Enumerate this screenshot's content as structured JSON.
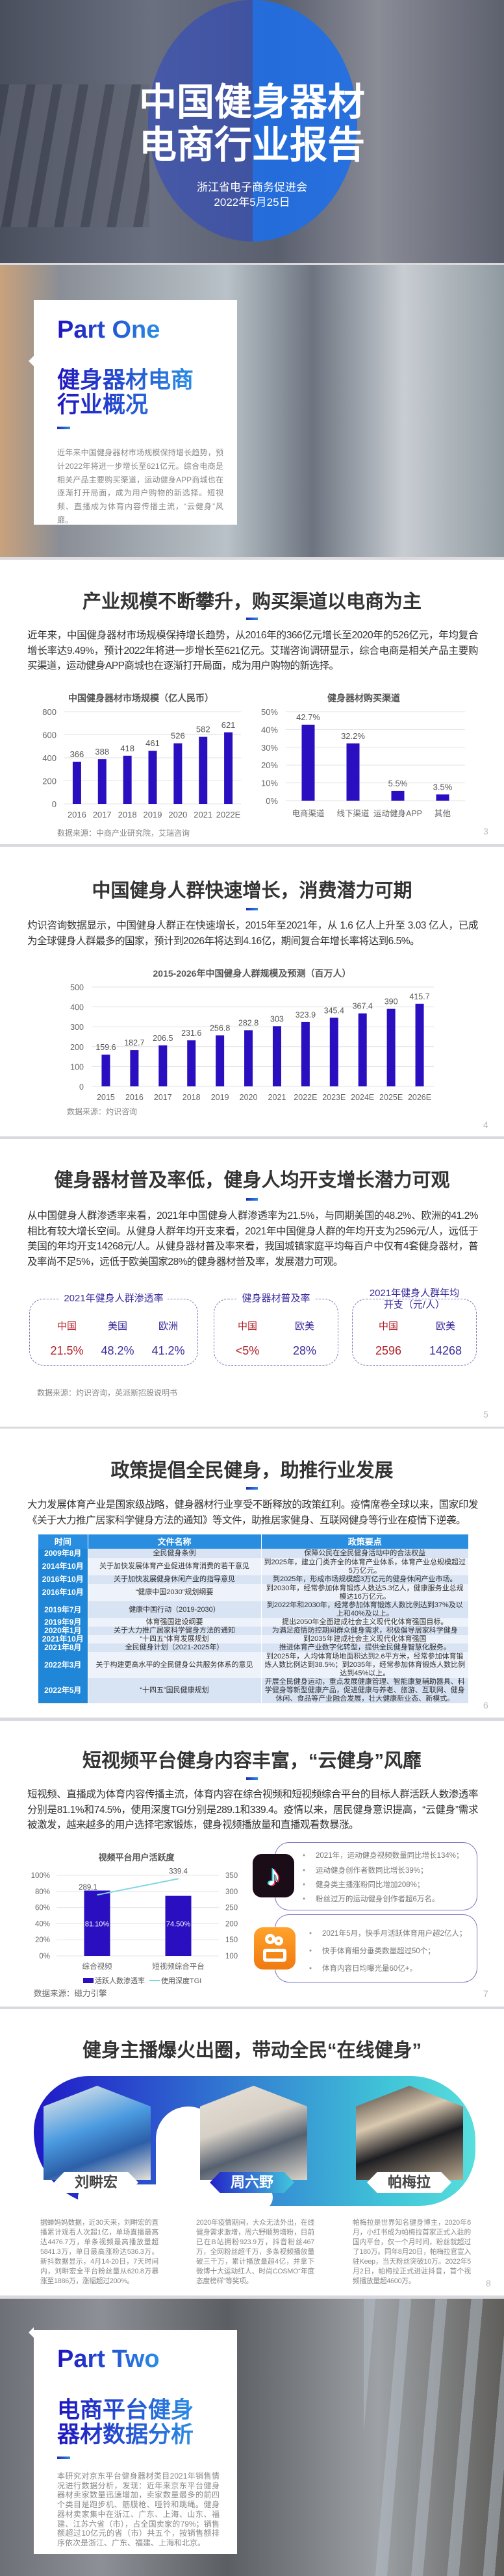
{
  "cover": {
    "title_line1": "中国健身器材",
    "title_line2": "电商行业报告",
    "org": "浙江省电子商务促进会",
    "date": "2022年5月25日"
  },
  "part_one": {
    "label": "Part One",
    "title_line1": "健身器材电商",
    "title_line2": "行业概况",
    "text": "近年来中国健身器材市场规模保持增长趋势，预计2022年将进一步增长至621亿元。综合电商是相关产品主要购买渠道，运动健身APP商城也在逐渐打开局面，成为用户购物的新选择。短视频、直播成为体育内容传播主流，“云健身”风靡。"
  },
  "slide3": {
    "title": "产业规模不断攀升，购买渠道以电商为主",
    "text": "近年来，中国健身器材市场规模保持增长趋势，从2016年的366亿元增长至2020年的526亿元，年均复合增长率达9.49%，预计2022年将进一步增长至621亿元。艾瑞咨询调研显示，综合电商是相关产品主要购买渠道，运动健身APP商城也在逐渐打开局面，成为用户购物的新选择。",
    "source": "数据来源：中商产业研究院，艾瑞咨询",
    "page": "3"
  },
  "slide4": {
    "title": "中国健身人群快速增长，消费潜力可期",
    "text": "灼识咨询数据显示，中国健身人群正在快速增长，2015年至2021年，从 1.6 亿人上升至 3.03 亿人，已成为全球健身人群最多的国家，预计到2026年将达到4.16亿，期间复合年增长率将达到6.5%。",
    "source": "数据来源：灼识咨询",
    "page": "4"
  },
  "slide5": {
    "title": "健身器材普及率低，健身人均开支增长潜力可观",
    "text": "从中国健身人群渗透率来看，2021年中国健身人群渗透率为21.5%，与同期美国的48.2%、欧洲的41.2%相比有较大增长空间。从健身人群年均开支来看，2021年中国健身人群的年均开支为2596元/人，远低于美国的年均开支14268元/人。从健身器材普及率来看，我国城镇家庭平均每百户中仅有4套健身器材，普及率尚不足5%，远低于欧美国家28%的健身器材普及率，发展潜力可观。",
    "boxes": [
      {
        "title": "2021年健身人群渗透率",
        "items": [
          {
            "label": "中国",
            "value": "21.5%"
          },
          {
            "label": "美国",
            "value": "48.2%"
          },
          {
            "label": "欧洲",
            "value": "41.2%"
          }
        ]
      },
      {
        "title": "健身器材普及率",
        "items": [
          {
            "label": "中国",
            "value": "<5%"
          },
          {
            "label": "欧美",
            "value": "28%"
          }
        ]
      },
      {
        "title_line1": "2021年健身人群年均",
        "title_line2": "开支（元/人）",
        "items": [
          {
            "label": "中国",
            "value": "2596"
          },
          {
            "label": "欧美",
            "value": "14268"
          }
        ]
      }
    ],
    "colors": {
      "china": "#b3202a",
      "other": "#3a2c9c"
    },
    "source": "数据来源：灼识咨询，英派斯招股说明书",
    "page": "5"
  },
  "slide6": {
    "title": "政策提倡全民健身，助推行业发展",
    "text": "大力发展体育产业是国家级战略，健身器材行业享受不断释放的政策红利。疫情席卷全球以来，国家印发《关于大力推广居家科学健身方法的通知》等文件，助推居家健身、互联网健身等行业在疫情下逆袭。",
    "headers": [
      "时间",
      "文件名称",
      "政策要点"
    ],
    "rows": [
      [
        "2009年8月",
        "全民健身条例",
        "保障公民在全民健身活动中的合法权益"
      ],
      [
        "2014年10月",
        "关于加快发展体育产业促进体育消费的若干意见",
        "到2025年，建立门类齐全的体育产业体系，体育产业总规模超过5万亿元。"
      ],
      [
        "2016年10月",
        "关于加快发展健身休闲产业的指导意见",
        "到2025年，形成市场规模超3万亿元的健身休闲产业市场。"
      ],
      [
        "2016年10月",
        "“健康中国2030”规划纲要",
        "到2030年，经常参加体育锻炼人数达5.3亿人，健康服务业总规模达16万亿元。"
      ],
      [
        "2019年7月",
        "健康中国行动（2019-2030）",
        "到2022年和2030年，经常参加体育锻炼人数比例达到37%及以上和40%及以上。"
      ],
      [
        "2019年9月",
        "体育强国建设纲要",
        "提出2050年全面建成社会主义现代化体育强国目标。"
      ],
      [
        "2020年1月",
        "关于大力推广居家科学健身方法的通知",
        "为满足疫情防控期间群众健身需求，积极倡导居家科学健身"
      ],
      [
        "2021年10月",
        "“十四五”体育发展规划",
        "到2035年建成社会主义现代化体育强国"
      ],
      [
        "2021年8月",
        "全民健身计划（2021-2025年）",
        "推进体育产业数字化转型，提供全民健身智慧化服务。"
      ],
      [
        "2022年3月",
        "关于构建更高水平的全民健身公共服务体系的意见",
        "到2025年，人均体育场地面积达到2.6平方米，经常参加体育锻炼人数比例达到38.5%；到2035年，经常参加体育锻炼人数比例达到45%以上。"
      ],
      [
        "2022年5月",
        "“十四五”国民健康规划",
        "开展全民健身运动，重点发展健康管理、智能康复辅助器具、科学健身等新型健康产品，促进健康与养老、旅游、互联网、健身休闲、食品等产业融合发展，壮大健康新业态、新模式。"
      ]
    ],
    "page": "6"
  },
  "slide7": {
    "title": "短视频平台健身内容丰富，“云健身”风靡",
    "text": "短视频、直播成为体育内容传播主流，体育内容在综合视频和短视频综合平台的目标人群活跃人数渗透率分别是81.1%和74.5%，使用深度TGI分别是289.1和339.4。疫情以来，居民健身意识提高，“云健身”需求被激发，越来越多的用户选择宅家锻炼，健身视频播放量和直播观看数暴涨。",
    "douyin_bullets": [
      "2021年，运动健身视频数量同比增长134%；",
      "运动健身创作者数同比增长39%；",
      "健身类主播涨粉同比增加208%；",
      "粉丝过万的运动健身创作者超6万名。"
    ],
    "kuaishou_bullets": [
      "2021年5月，快手月活跃体育用户超2亿人；",
      "快手体育细分垂类数量超过50个；",
      "体育内容日均曝光量60亿+。"
    ],
    "icons": [
      "douyin-logo-icon",
      "kuaishou-logo-icon"
    ],
    "source": "数据来源：磁力引擎",
    "page": "7"
  },
  "slide8": {
    "title": "健身主播爆火出圈，带动全民“在线健身”",
    "influencers": [
      {
        "name": "刘畊宏",
        "text": "据蝉妈妈数据，近30天来，刘畊宏的直播累计观看人次超1亿，单场直播最高达4476.7万，单条视频最高播放量超5841.3万，单日最高涨粉达536.3万。新抖数据显示，4月14-20日，7天时间内，刘畊宏全平台粉丝量从620.8万暴涨至1886万，涨幅超过200%。"
      },
      {
        "name": "周六野",
        "text": "2020年疫情期间，大众无法外出，在线健身需求激增，周六野顺势增粉，目前已在B站拥粉923.9万，抖音粉丝467万，全网粉丝超千万，多条视频播放量破三千万，累计播放量超4亿，并拿下微博十大运动红人、时尚COSMO“年度态度榜样”等奖项。"
      },
      {
        "name": "帕梅拉",
        "text": "帕梅拉是世界知名健身博主，2020年6月，小红书成为帕梅拉首家正式入驻的国内平台，仅一个月时间，粉丝就超过了180万。同年8月20日，帕梅拉官宣入驻Keep，当天粉丝突破10万。2022年5月2日，帕梅拉正式进驻抖音，首个视频播放量超4600万。"
      }
    ],
    "page": "8"
  },
  "part_two": {
    "label": "Part Two",
    "title_line1": "电商平台健身",
    "title_line2": "器材数据分析",
    "text": "本研究对京东平台健身器材类目2021年销售情况进行数据分析，发现：近年来京东平台健身器材卖家数量迅速增加，卖家数量最多的前四个类目是跑步机、筋膜枪、哑铃和跳绳。健身器材卖家集中在浙江、广东、上海、山东、福建、江苏六省（市），占全国卖家的79%；销售额超过10亿元的省（市）共五个，按销售额排序依次是浙江、广东、福建、上海和北京。"
  },
  "colors": {
    "bar": "#2a0fc0",
    "line": "#7fd6e3",
    "accent": "#2a8ee0"
  },
  "chart_data": [
    {
      "type": "bar",
      "title": "中国健身器材市场规模（亿人民币）",
      "categories": [
        "2016",
        "2017",
        "2018",
        "2019",
        "2020",
        "2021",
        "2022E"
      ],
      "values": [
        366,
        388,
        418,
        461,
        526,
        582,
        621
      ],
      "ylim": [
        0,
        800
      ],
      "yticks": [
        0,
        200,
        400,
        600,
        800
      ],
      "data_labels": true,
      "grid": true
    },
    {
      "type": "bar",
      "title": "健身器材购买渠道",
      "categories": [
        "电商渠道",
        "线下渠道",
        "运动健身APP",
        "其他"
      ],
      "values": [
        42.7,
        32.2,
        5.5,
        3.5
      ],
      "unit": "%",
      "ylim": [
        0,
        50
      ],
      "yticks": [
        0,
        10,
        20,
        30,
        40,
        50
      ],
      "data_labels": true,
      "grid": true
    },
    {
      "type": "bar",
      "title": "2015-2026年中国健身人群规模及预测（百万人）",
      "categories": [
        "2015",
        "2016",
        "2017",
        "2018",
        "2019",
        "2020",
        "2021",
        "2022E",
        "2023E",
        "2024E",
        "2025E",
        "2026E"
      ],
      "values": [
        159.6,
        182.7,
        206.5,
        231.6,
        256.8,
        282.8,
        303,
        323.9,
        345.4,
        367.4,
        390,
        415.7
      ],
      "ylim": [
        0,
        500
      ],
      "yticks": [
        0,
        100,
        200,
        300,
        400,
        500
      ],
      "data_labels": true,
      "grid": true
    },
    {
      "type": "bar+line",
      "title": "视频平台用户活跃度",
      "categories": [
        "综合视频",
        "短视频综合平台"
      ],
      "series": [
        {
          "name": "活跃人数渗透率",
          "type": "bar",
          "axis": "left",
          "values": [
            81.1,
            74.5
          ],
          "labels": [
            "81.10%",
            "74.50%"
          ]
        },
        {
          "name": "使用深度TGI",
          "type": "line",
          "axis": "right",
          "values": [
            289.1,
            339.4
          ],
          "labels": [
            "289.1",
            "339.4"
          ]
        }
      ],
      "ylim_left": [
        0,
        100
      ],
      "yticks_left": [
        0,
        20,
        40,
        60,
        80,
        100
      ],
      "ylim_right": [
        100,
        350
      ],
      "yticks_right": [
        100,
        150,
        200,
        250,
        300,
        350
      ],
      "legend": "bottom",
      "grid": true
    }
  ]
}
